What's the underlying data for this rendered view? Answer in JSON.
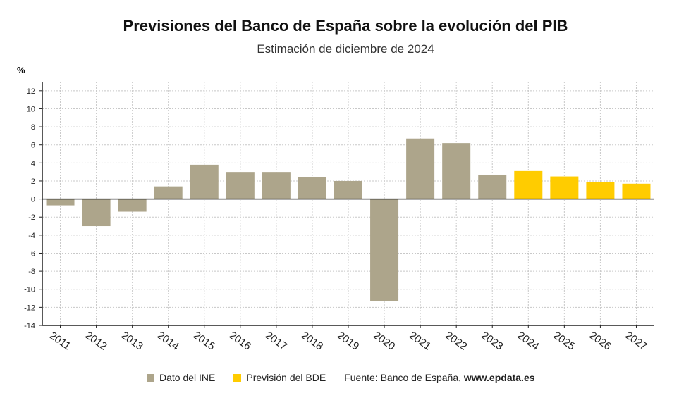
{
  "chart_data": {
    "type": "bar",
    "title": "Previsiones del Banco de España sobre la evolución del PIB",
    "subtitle": "Estimación de diciembre de 2024",
    "ylabel": "%",
    "xlabel": "",
    "ylim": [
      -14,
      13
    ],
    "yticks": [
      12,
      10,
      8,
      6,
      4,
      2,
      0,
      -2,
      -4,
      -6,
      -8,
      -10,
      -12,
      -14
    ],
    "grid": true,
    "legend_position": "bottom",
    "categories": [
      "2011",
      "2012",
      "2013",
      "2014",
      "2015",
      "2016",
      "2017",
      "2018",
      "2019",
      "2020",
      "2021",
      "2022",
      "2023",
      "2024",
      "2025",
      "2026",
      "2027"
    ],
    "series": [
      {
        "name": "Dato del INE",
        "color": "#ada58b",
        "values": [
          -0.7,
          -3.0,
          -1.4,
          1.4,
          3.8,
          3.0,
          3.0,
          2.4,
          2.0,
          -11.3,
          6.7,
          6.2,
          2.7,
          null,
          null,
          null,
          null
        ]
      },
      {
        "name": "Previsión del BDE",
        "color": "#ffcc00",
        "values": [
          null,
          null,
          null,
          null,
          null,
          null,
          null,
          null,
          null,
          null,
          null,
          null,
          null,
          3.1,
          2.5,
          1.9,
          1.7
        ]
      }
    ]
  },
  "source": {
    "prefix": "Fuente: Banco de España, ",
    "site": "www.epdata.es"
  }
}
